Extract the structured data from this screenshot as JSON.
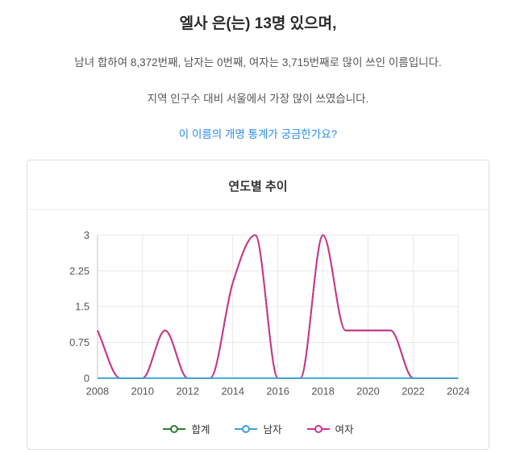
{
  "header": {
    "title": "엘사 은(는) 13명 있으며,",
    "rank_text": "남녀 합하여 8,372번째, 남자는 0번째, 여자는 3,715번째로 많이 쓰인 이름입니다.",
    "region_text": "지역 인구수 대비 서울에서 가장 많이 쓰였습니다.",
    "link_text": "이 이름의 개명 통계가 궁금한가요?",
    "link_color": "#2b8df0"
  },
  "chart_data": {
    "type": "line",
    "title": "연도별 추이",
    "x": [
      2008,
      2009,
      2010,
      2011,
      2012,
      2013,
      2014,
      2015,
      2016,
      2017,
      2018,
      2019,
      2020,
      2021,
      2022,
      2023,
      2024
    ],
    "series": [
      {
        "name": "합계",
        "color": "#2e7d32",
        "values": [
          1,
          0,
          0,
          1,
          0,
          0,
          2,
          3,
          0,
          0,
          3,
          1,
          1,
          1,
          0,
          0,
          0
        ]
      },
      {
        "name": "남자",
        "color": "#3fa2d9",
        "values": [
          0,
          0,
          0,
          0,
          0,
          0,
          0,
          0,
          0,
          0,
          0,
          0,
          0,
          0,
          0,
          0,
          0
        ]
      },
      {
        "name": "여자",
        "color": "#d23193",
        "values": [
          1,
          0,
          0,
          1,
          0,
          0,
          2,
          3,
          0,
          0,
          3,
          1,
          1,
          1,
          0,
          0,
          0
        ]
      }
    ],
    "xticks": [
      2008,
      2010,
      2012,
      2014,
      2016,
      2018,
      2020,
      2022,
      2024
    ],
    "yticks": [
      0,
      0.75,
      1.5,
      2.25,
      3
    ],
    "ylim": [
      0,
      3
    ],
    "grid": true,
    "legend_position": "bottom",
    "colors": {
      "grid": "#e7e7e7",
      "axis": "#c9c9c9",
      "tick_text": "#555"
    }
  }
}
